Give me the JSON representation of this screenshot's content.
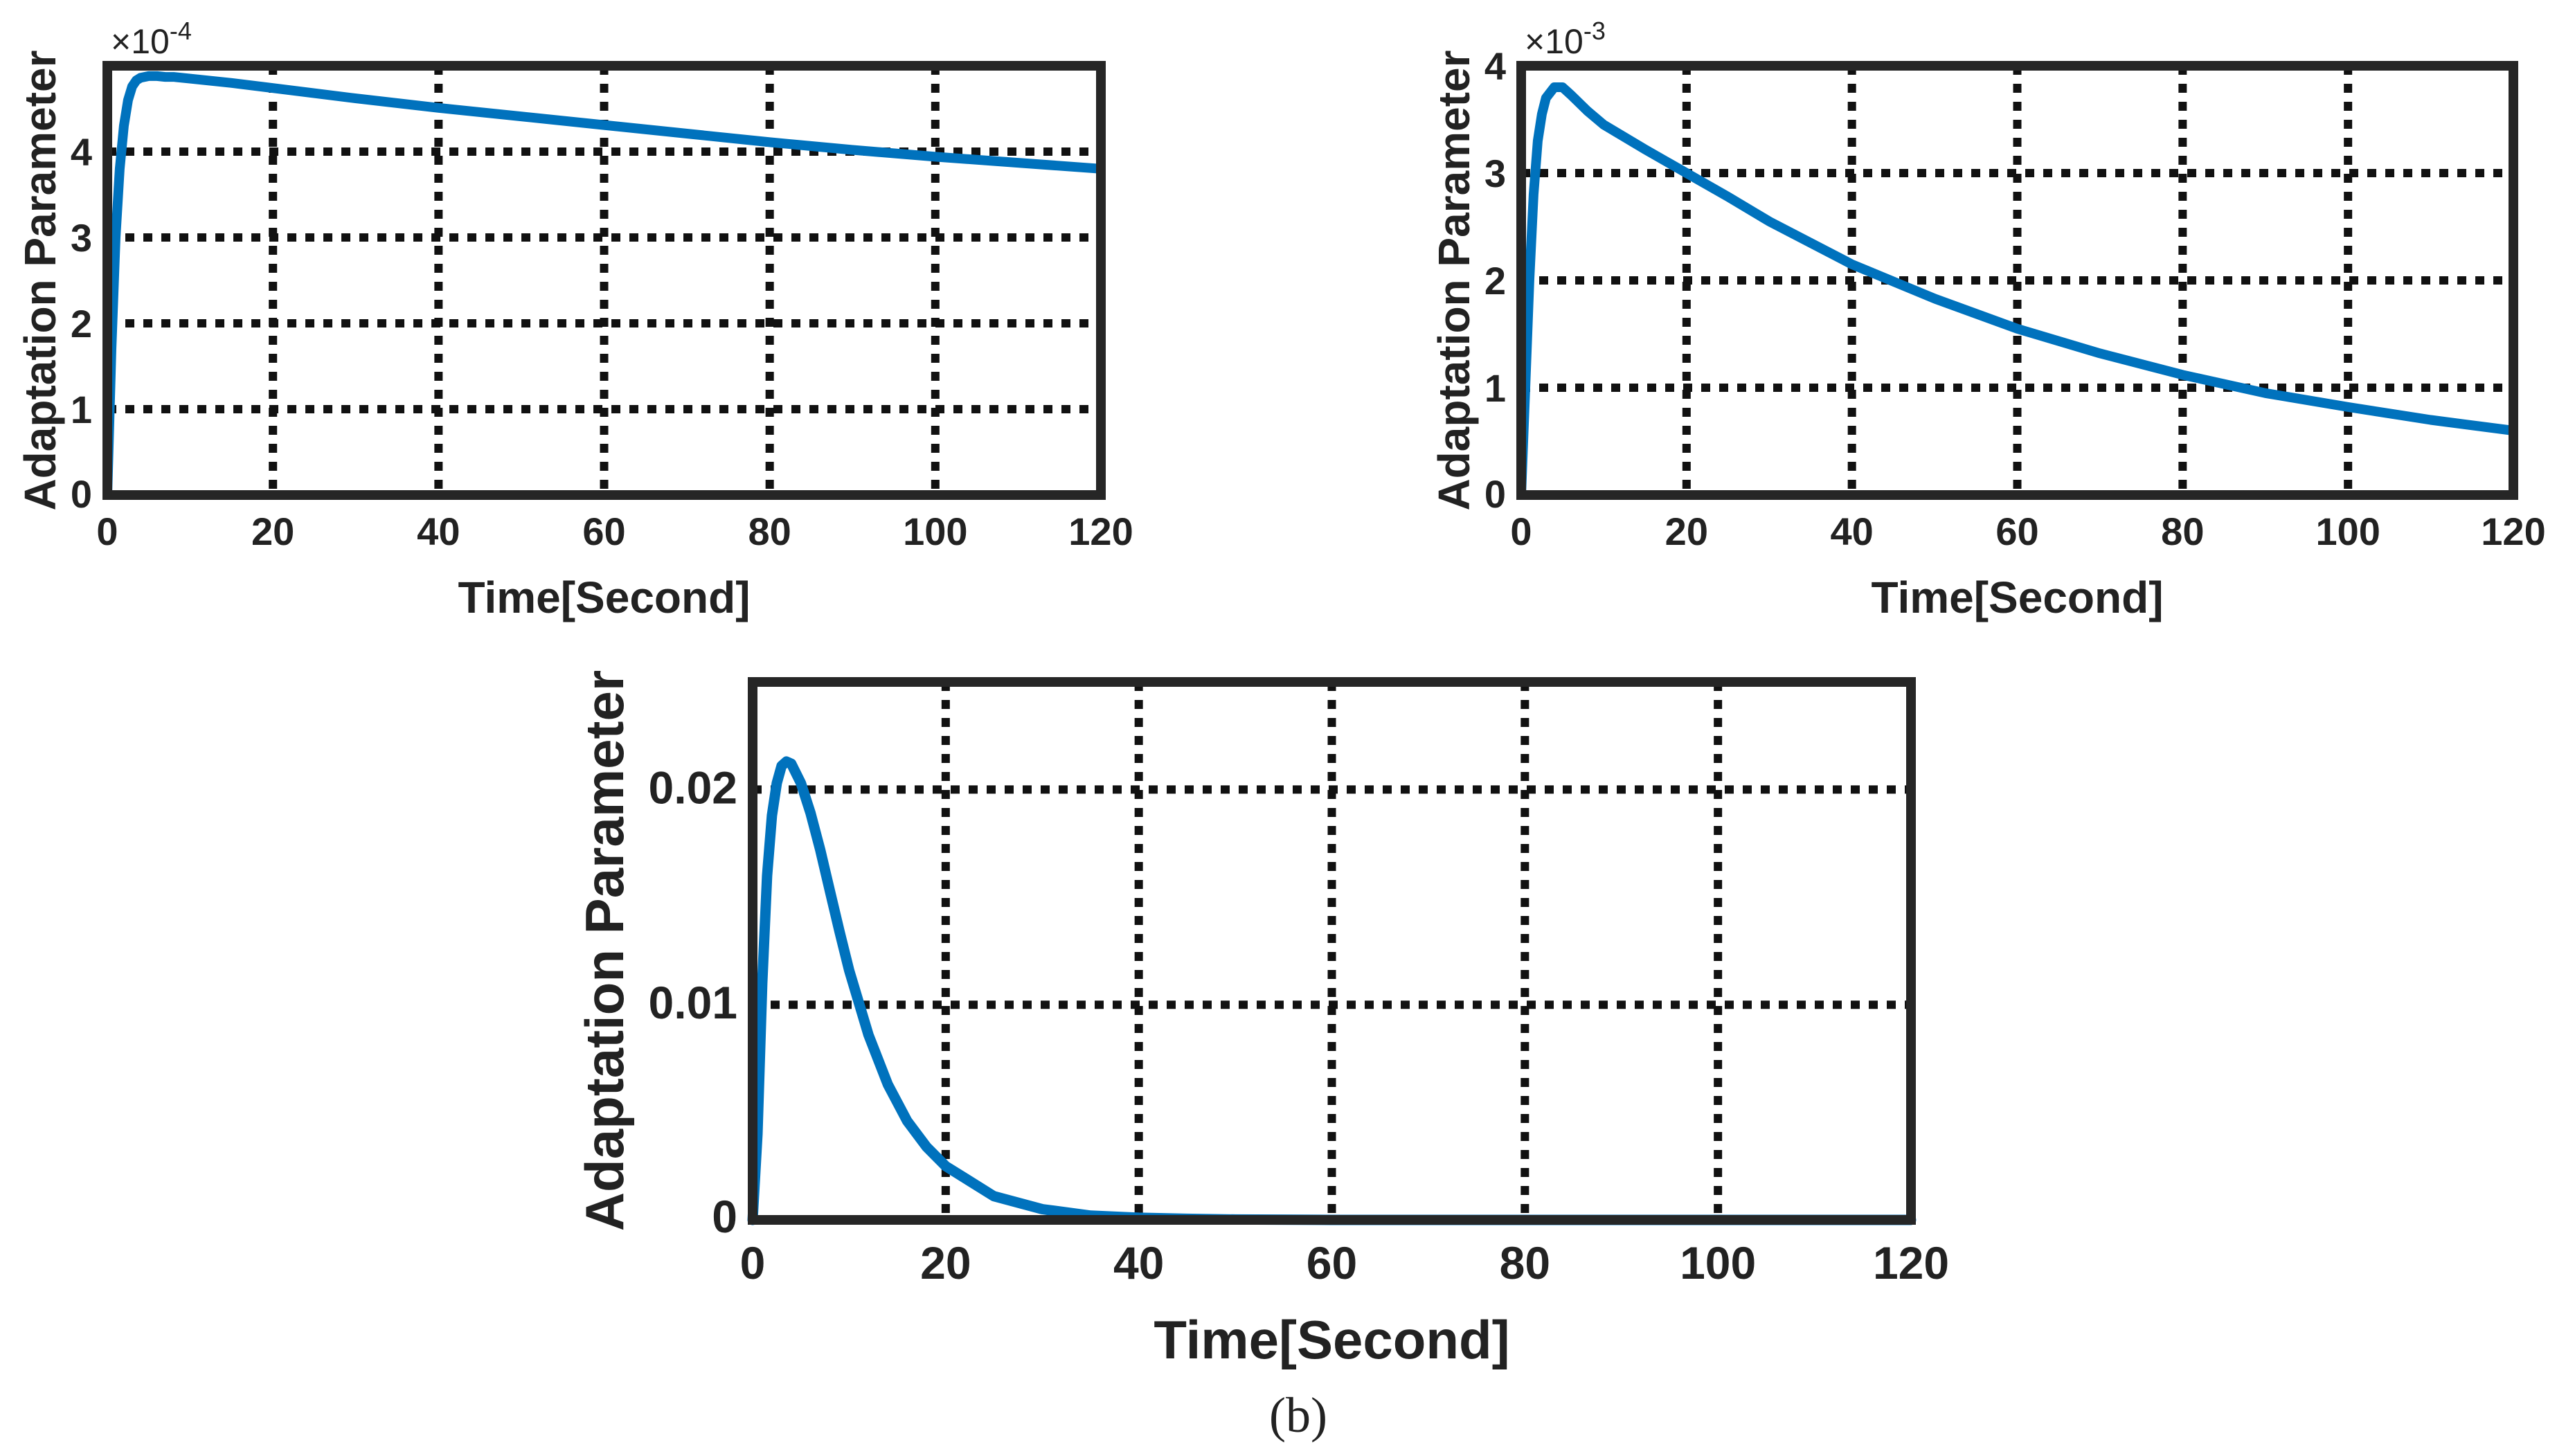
{
  "figure_caption": "(b)",
  "colors": {
    "line": "#0072BD",
    "grid": "#111111",
    "axis": "#262626",
    "text": "#222222"
  },
  "chart_data": [
    {
      "type": "line",
      "id": "top-left",
      "title": "",
      "xlabel": "Time[Second]",
      "ylabel": "Adaptation Parameter",
      "xlim": [
        0,
        120
      ],
      "ylim": [
        0,
        5
      ],
      "xticks": [
        0,
        20,
        40,
        60,
        80,
        100,
        120
      ],
      "yticks": [
        0,
        1,
        2,
        3,
        4
      ],
      "xtick_labels": [
        "0",
        "20",
        "40",
        "60",
        "80",
        "100",
        "120"
      ],
      "ytick_labels": [
        "0",
        "1",
        "2",
        "3",
        "4"
      ],
      "exponent_label": {
        "base": "×10",
        "power": "-4"
      },
      "grid": true,
      "series": [
        {
          "name": "adaptation parameter",
          "x": [
            0,
            0.5,
            1,
            1.5,
            2,
            2.5,
            3,
            3.5,
            4,
            5,
            6,
            7,
            8,
            10,
            15,
            20,
            30,
            40,
            50,
            60,
            70,
            80,
            90,
            100,
            110,
            120
          ],
          "y": [
            0,
            1.7,
            3.0,
            3.8,
            4.3,
            4.6,
            4.76,
            4.83,
            4.86,
            4.88,
            4.88,
            4.87,
            4.87,
            4.85,
            4.8,
            4.74,
            4.62,
            4.51,
            4.41,
            4.31,
            4.21,
            4.11,
            4.02,
            3.94,
            3.87,
            3.8
          ]
        }
      ]
    },
    {
      "type": "line",
      "id": "top-right",
      "title": "",
      "xlabel": "Time[Second]",
      "ylabel": "Adaptation Parameter",
      "xlim": [
        0,
        120
      ],
      "ylim": [
        0,
        4
      ],
      "xticks": [
        0,
        20,
        40,
        60,
        80,
        100,
        120
      ],
      "yticks": [
        0,
        1,
        2,
        3,
        4
      ],
      "xtick_labels": [
        "0",
        "20",
        "40",
        "60",
        "80",
        "100",
        "120"
      ],
      "ytick_labels": [
        "0",
        "1",
        "2",
        "3",
        "4"
      ],
      "exponent_label": {
        "base": "×10",
        "power": "-3"
      },
      "grid": true,
      "series": [
        {
          "name": "adaptation parameter",
          "x": [
            0,
            0.5,
            1,
            1.5,
            2,
            2.5,
            3,
            4,
            5,
            6,
            8,
            10,
            15,
            20,
            25,
            30,
            40,
            50,
            60,
            70,
            80,
            90,
            100,
            110,
            120
          ],
          "y": [
            0,
            1.0,
            2.0,
            2.8,
            3.3,
            3.55,
            3.7,
            3.8,
            3.8,
            3.73,
            3.58,
            3.45,
            3.22,
            3.0,
            2.78,
            2.55,
            2.15,
            1.83,
            1.55,
            1.32,
            1.12,
            0.95,
            0.82,
            0.7,
            0.6
          ]
        }
      ]
    },
    {
      "type": "line",
      "id": "bottom",
      "title": "",
      "xlabel": "Time[Second]",
      "ylabel": "Adaptation Parameter",
      "xlim": [
        0,
        120
      ],
      "ylim": [
        0,
        0.025
      ],
      "xticks": [
        0,
        20,
        40,
        60,
        80,
        100,
        120
      ],
      "yticks": [
        0,
        0.01,
        0.02
      ],
      "xtick_labels": [
        "0",
        "20",
        "40",
        "60",
        "80",
        "100",
        "120"
      ],
      "ytick_labels": [
        "0",
        "0.01",
        "0.02"
      ],
      "grid": true,
      "series": [
        {
          "name": "adaptation parameter",
          "x": [
            0,
            0.5,
            1,
            1.5,
            2,
            2.5,
            3,
            3.5,
            4,
            5,
            6,
            7,
            8,
            9,
            10,
            12,
            14,
            16,
            18,
            20,
            25,
            30,
            35,
            40,
            45,
            50,
            60,
            80,
            100,
            120
          ],
          "y": [
            0,
            0.004,
            0.011,
            0.016,
            0.0188,
            0.0203,
            0.0211,
            0.0213,
            0.0212,
            0.0203,
            0.0189,
            0.0172,
            0.0153,
            0.0134,
            0.0116,
            0.0086,
            0.0063,
            0.0046,
            0.0034,
            0.0025,
            0.0011,
            0.0005,
            0.0002,
            0.0001,
            5e-05,
            2e-05,
            0,
            0,
            0,
            0
          ]
        }
      ]
    }
  ]
}
